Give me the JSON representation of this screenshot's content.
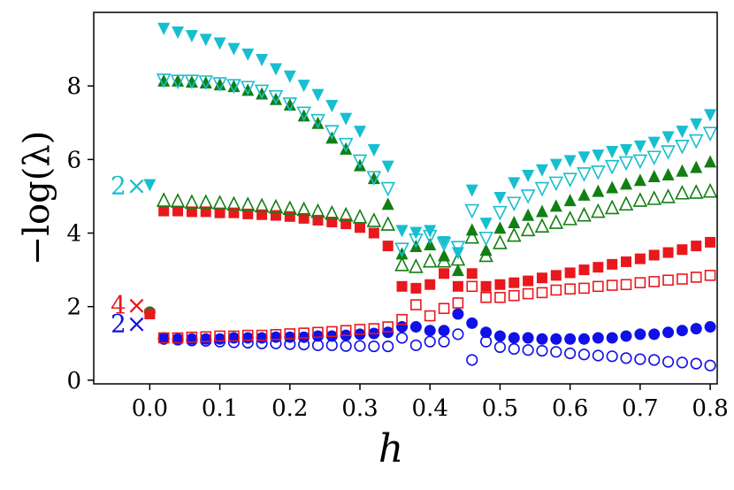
{
  "chart_data": {
    "type": "scatter",
    "title": "",
    "xlabel": "h",
    "ylabel": "−log(λ)",
    "xlim": [
      -0.08,
      0.81
    ],
    "ylim": [
      -0.1,
      10.0
    ],
    "xticks": [
      0.0,
      0.1,
      0.2,
      0.3,
      0.4,
      0.5,
      0.6,
      0.7,
      0.8
    ],
    "xtick_labels": [
      "0.0",
      "0.1",
      "0.2",
      "0.3",
      "0.4",
      "0.5",
      "0.6",
      "0.7",
      "0.8"
    ],
    "yticks": [
      0,
      2,
      4,
      6,
      8
    ],
    "ytick_labels": [
      "0",
      "2",
      "4",
      "6",
      "8"
    ],
    "grid": false,
    "legend": "none",
    "annotations": [
      {
        "text": "2×",
        "x": -0.03,
        "y": 5.3,
        "color": "#17BECF"
      },
      {
        "text": "4×",
        "x": -0.03,
        "y": 2.05,
        "color": "#E8181C"
      },
      {
        "text": "2×",
        "x": -0.03,
        "y": 1.55,
        "color": "#1010E8"
      }
    ],
    "x": [
      0.02,
      0.04,
      0.06,
      0.08,
      0.1,
      0.12,
      0.14,
      0.16,
      0.18,
      0.2,
      0.22,
      0.24,
      0.26,
      0.28,
      0.3,
      0.32,
      0.34,
      0.36,
      0.38,
      0.4,
      0.42,
      0.44,
      0.46,
      0.48,
      0.5,
      0.52,
      0.54,
      0.56,
      0.58,
      0.6,
      0.62,
      0.64,
      0.66,
      0.68,
      0.7,
      0.72,
      0.74,
      0.76,
      0.78,
      0.8
    ],
    "h0_points": [
      {
        "name": "cyan filled down-triangle at h=0",
        "marker": "v-filled",
        "color": "#17BECF",
        "x": 0.0,
        "y": 5.3
      },
      {
        "name": "green filled circle at h=0",
        "marker": "o-filled",
        "color": "#127F12",
        "x": 0.0,
        "y": 1.85
      },
      {
        "name": "red filled square at h=0",
        "marker": "s-filled",
        "color": "#E8181C",
        "x": 0.0,
        "y": 1.8
      }
    ],
    "series": [
      {
        "name": "cyan filled down-triangles",
        "marker": "v-filled",
        "color": "#17BECF",
        "values": [
          9.55,
          9.45,
          9.35,
          9.25,
          9.15,
          9.0,
          8.85,
          8.7,
          8.45,
          8.25,
          8.0,
          7.75,
          7.45,
          7.1,
          6.75,
          6.25,
          5.8,
          4.05,
          4.0,
          4.05,
          3.75,
          3.45,
          5.15,
          4.25,
          4.95,
          5.35,
          5.55,
          5.7,
          5.85,
          5.95,
          6.05,
          6.1,
          6.2,
          6.25,
          6.35,
          6.45,
          6.6,
          6.75,
          6.95,
          7.2
        ]
      },
      {
        "name": "cyan open down-triangles",
        "marker": "v-open",
        "color": "#17BECF",
        "values": [
          8.15,
          8.12,
          8.12,
          8.1,
          8.05,
          8.0,
          7.95,
          7.85,
          7.7,
          7.5,
          7.25,
          7.05,
          6.75,
          6.4,
          5.95,
          5.5,
          5.2,
          3.55,
          3.8,
          3.9,
          3.7,
          3.6,
          4.6,
          3.85,
          4.55,
          4.8,
          5.0,
          5.2,
          5.35,
          5.45,
          5.6,
          5.65,
          5.8,
          5.9,
          5.95,
          6.05,
          6.2,
          6.35,
          6.5,
          6.7
        ]
      },
      {
        "name": "green filled up-triangles",
        "marker": "^-filled",
        "color": "#127F12",
        "values": [
          8.15,
          8.15,
          8.12,
          8.1,
          8.05,
          8.0,
          7.9,
          7.8,
          7.65,
          7.5,
          7.2,
          7.0,
          6.6,
          6.3,
          5.85,
          5.5,
          4.8,
          3.45,
          3.65,
          3.7,
          3.4,
          3.0,
          4.1,
          3.55,
          4.15,
          4.3,
          4.5,
          4.6,
          4.75,
          4.9,
          5.05,
          5.15,
          5.25,
          5.35,
          5.45,
          5.55,
          5.6,
          5.7,
          5.8,
          5.95
        ]
      },
      {
        "name": "green open up-triangles",
        "marker": "^-open",
        "color": "#127F12",
        "values": [
          4.9,
          4.88,
          4.85,
          4.85,
          4.83,
          4.8,
          4.78,
          4.75,
          4.72,
          4.68,
          4.65,
          4.6,
          4.55,
          4.5,
          4.45,
          4.35,
          4.25,
          3.15,
          3.1,
          3.25,
          3.25,
          3.3,
          3.9,
          3.4,
          3.75,
          3.95,
          4.1,
          4.2,
          4.3,
          4.4,
          4.5,
          4.6,
          4.7,
          4.8,
          4.9,
          4.95,
          5.0,
          5.1,
          5.12,
          5.15
        ]
      },
      {
        "name": "red filled squares",
        "marker": "s-filled",
        "color": "#E8181C",
        "values": [
          4.6,
          4.6,
          4.58,
          4.58,
          4.55,
          4.55,
          4.52,
          4.5,
          4.48,
          4.45,
          4.4,
          4.35,
          4.3,
          4.25,
          4.15,
          4.0,
          3.65,
          2.55,
          2.5,
          2.6,
          2.9,
          2.55,
          2.9,
          2.55,
          2.6,
          2.65,
          2.7,
          2.78,
          2.85,
          2.92,
          3.0,
          3.07,
          3.15,
          3.22,
          3.3,
          3.4,
          3.47,
          3.55,
          3.65,
          3.75
        ]
      },
      {
        "name": "red open squares",
        "marker": "s-open",
        "color": "#E8181C",
        "values": [
          1.15,
          1.15,
          1.17,
          1.18,
          1.2,
          1.2,
          1.22,
          1.22,
          1.24,
          1.26,
          1.28,
          1.3,
          1.32,
          1.35,
          1.38,
          1.4,
          1.45,
          1.65,
          2.05,
          1.75,
          1.95,
          2.1,
          2.55,
          2.25,
          2.25,
          2.3,
          2.35,
          2.38,
          2.45,
          2.48,
          2.5,
          2.55,
          2.58,
          2.6,
          2.65,
          2.68,
          2.72,
          2.75,
          2.8,
          2.85
        ]
      },
      {
        "name": "blue filled circles",
        "marker": "o-filled",
        "color": "#1010E8",
        "values": [
          1.15,
          1.12,
          1.12,
          1.12,
          1.12,
          1.15,
          1.15,
          1.15,
          1.17,
          1.17,
          1.17,
          1.2,
          1.2,
          1.22,
          1.25,
          1.27,
          1.3,
          1.45,
          1.45,
          1.35,
          1.35,
          1.8,
          1.55,
          1.3,
          1.2,
          1.15,
          1.15,
          1.12,
          1.12,
          1.12,
          1.12,
          1.15,
          1.15,
          1.2,
          1.25,
          1.25,
          1.3,
          1.35,
          1.4,
          1.45
        ]
      },
      {
        "name": "blue open circles",
        "marker": "o-open",
        "color": "#1010E8",
        "values": [
          1.12,
          1.1,
          1.08,
          1.07,
          1.05,
          1.03,
          1.02,
          1.0,
          1.0,
          0.98,
          0.97,
          0.95,
          0.95,
          0.93,
          0.93,
          0.92,
          0.92,
          1.15,
          0.95,
          1.05,
          1.05,
          1.25,
          0.55,
          1.05,
          0.9,
          0.85,
          0.82,
          0.8,
          0.77,
          0.73,
          0.7,
          0.67,
          0.65,
          0.6,
          0.57,
          0.55,
          0.5,
          0.48,
          0.45,
          0.4
        ]
      }
    ]
  }
}
